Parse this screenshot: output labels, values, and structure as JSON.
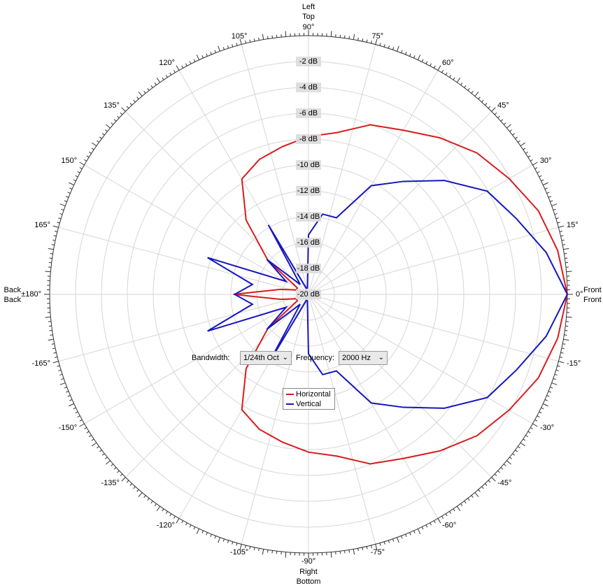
{
  "chart_data": {
    "type": "polar",
    "theta": [
      0,
      10,
      20,
      30,
      40,
      50,
      60,
      70,
      80,
      90,
      100,
      110,
      120,
      130,
      140,
      150,
      160,
      170,
      180,
      190,
      200,
      210,
      220,
      230,
      240,
      250,
      260,
      270,
      280,
      290,
      300,
      310,
      320,
      330,
      340,
      350
    ],
    "series": [
      {
        "name": "Horizontal",
        "color": "#d81c1c",
        "values": [
          0,
          -0.45,
          -1.1,
          -2.1,
          -3.0,
          -4.2,
          -5.35,
          -6.05,
          -7.3,
          -7.8,
          -8.4,
          -8.9,
          -9.7,
          -12.5,
          -15.9,
          -19,
          -19,
          -17.8,
          -14.2,
          -17.8,
          -19,
          -19,
          -15.9,
          -12.5,
          -9.7,
          -8.9,
          -8.4,
          -7.8,
          -7.3,
          -6.05,
          -5.35,
          -4.2,
          -3.0,
          -2.1,
          -1.1,
          -0.45
        ]
      },
      {
        "name": "Vertical",
        "color": "#1616c0",
        "values": [
          0,
          -1.35,
          -2.9,
          -4.05,
          -6.3,
          -8.6,
          -10.3,
          -13.7,
          -13.7,
          -15.4,
          -19.5,
          -19.5,
          -13.8,
          -19,
          -15.8,
          -18,
          -11.7,
          -15.6,
          -14.3,
          -15.6,
          -11.7,
          -18,
          -15.8,
          -19,
          -13.8,
          -19.5,
          -19.5,
          -15.4,
          -13.7,
          -13.7,
          -10.3,
          -8.6,
          -6.3,
          -4.05,
          -2.9,
          -1.35
        ]
      }
    ],
    "rlim": [
      -20,
      0
    ],
    "rticks": [
      {
        "value": -2,
        "label": "-2 dB"
      },
      {
        "value": -4,
        "label": "-4 dB"
      },
      {
        "value": -6,
        "label": "-6 dB"
      },
      {
        "value": -8,
        "label": "-8 dB"
      },
      {
        "value": -10,
        "label": "-10 dB"
      },
      {
        "value": -12,
        "label": "-12 dB"
      },
      {
        "value": -14,
        "label": "-14 dB"
      },
      {
        "value": -16,
        "label": "-16 dB"
      },
      {
        "value": -18,
        "label": "-18 dB"
      },
      {
        "value": -20,
        "label": "-20 dB"
      }
    ],
    "thetaticks": [
      {
        "value": 0,
        "label": "0°"
      },
      {
        "value": 15,
        "label": "15°"
      },
      {
        "value": 30,
        "label": "30°"
      },
      {
        "value": 45,
        "label": "45°"
      },
      {
        "value": 60,
        "label": "60°"
      },
      {
        "value": 75,
        "label": "75°"
      },
      {
        "value": 90,
        "label": "90°"
      },
      {
        "value": 105,
        "label": "105°"
      },
      {
        "value": 120,
        "label": "120°"
      },
      {
        "value": 135,
        "label": "135°"
      },
      {
        "value": 150,
        "label": "150°"
      },
      {
        "value": 165,
        "label": "165°"
      },
      {
        "value": 180,
        "label": "±180°"
      },
      {
        "value": -165,
        "label": "-165°"
      },
      {
        "value": -150,
        "label": "-150°"
      },
      {
        "value": -135,
        "label": "-135°"
      },
      {
        "value": -120,
        "label": "-120°"
      },
      {
        "value": -105,
        "label": "-105°"
      },
      {
        "value": -90,
        "label": "-90°"
      },
      {
        "value": -75,
        "label": "-75°"
      },
      {
        "value": -60,
        "label": "-60°"
      },
      {
        "value": -45,
        "label": "-45°"
      },
      {
        "value": -30,
        "label": "-30°"
      },
      {
        "value": -15,
        "label": "-15°"
      }
    ],
    "grid": true,
    "direction_labels": {
      "horizontal": {
        "front": "Front",
        "left": "Left",
        "back": "Back",
        "right": "Right"
      },
      "vertical": {
        "front": "Front",
        "top": "Top",
        "back": "Back",
        "bottom": "Bottom"
      }
    }
  },
  "controls": {
    "bandwidth": {
      "label": "Bandwidth:",
      "value": "1/24th Oct"
    },
    "frequency": {
      "label": "Frequency:",
      "value": "2000 Hz"
    }
  }
}
